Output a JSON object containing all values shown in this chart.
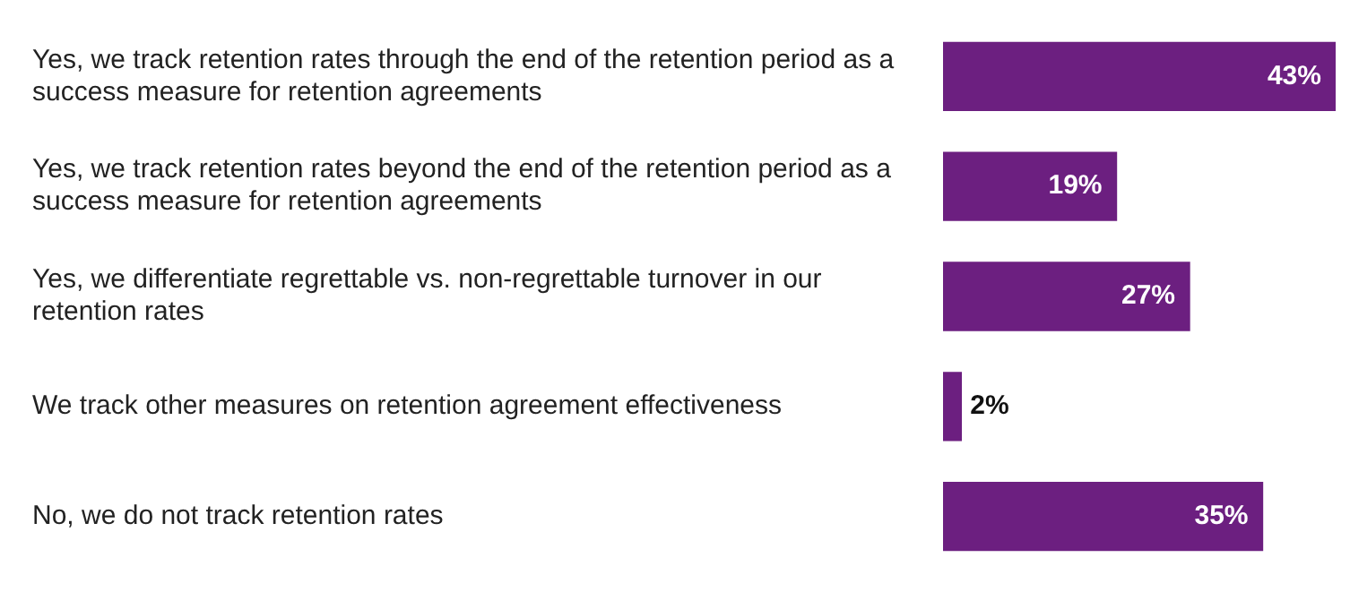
{
  "chart_data": {
    "type": "bar",
    "orientation": "horizontal",
    "categories": [
      "Yes, we track retention rates through the end of the retention period as a success measure for retention agreements",
      "Yes, we track retention rates beyond the end of the retention period as a success measure for retention agreements",
      "Yes, we differentiate regrettable vs. non-regrettable turnover in our retention rates",
      "We track other measures on retention agreement effectiveness",
      "No, we do not track retention rates"
    ],
    "values": [
      43,
      19,
      27,
      2,
      35
    ],
    "value_labels": [
      "43%",
      "19%",
      "27%",
      "2%",
      "35%"
    ],
    "color": "#6c1f80",
    "grid": false,
    "legend": false
  }
}
